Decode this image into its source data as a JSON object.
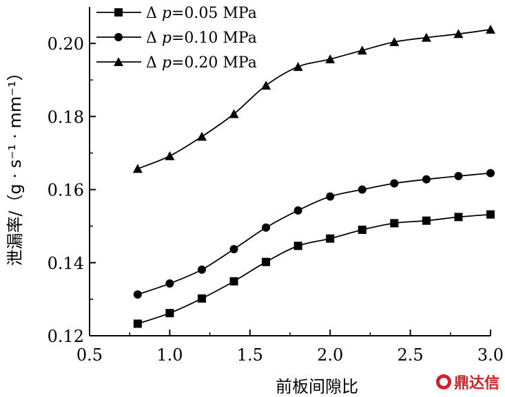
{
  "chart_data": {
    "type": "line",
    "xlabel": "前板间隙比",
    "ylabel": "泄漏率/（g · s⁻¹ · mm⁻¹）",
    "xlim": [
      0.5,
      3.0
    ],
    "ylim": [
      0.12,
      0.21
    ],
    "xticks": [
      "0.5",
      "1.0",
      "1.5",
      "2.0",
      "2.5",
      "3.0"
    ],
    "yticks": [
      "0.12",
      "0.14",
      "0.16",
      "0.18",
      "0.20"
    ],
    "grid": false,
    "legend_position": "top-left",
    "x": [
      0.8,
      1.0,
      1.2,
      1.4,
      1.6,
      1.8,
      2.0,
      2.2,
      2.4,
      2.6,
      2.8,
      3.0
    ],
    "series": [
      {
        "name": "Δp=0.05 MPa",
        "legend_symbol": "Δ",
        "legend_var": "p",
        "legend_rest": "=0.05 MPa",
        "marker": "square",
        "values": [
          0.1233,
          0.1262,
          0.1302,
          0.1349,
          0.1402,
          0.1446,
          0.1466,
          0.149,
          0.1508,
          0.1515,
          0.1525,
          0.1532
        ]
      },
      {
        "name": "Δp=0.10 MPa",
        "legend_symbol": "Δ",
        "legend_var": "p",
        "legend_rest": "=0.10 MPa",
        "marker": "circle",
        "values": [
          0.1313,
          0.1343,
          0.1381,
          0.1437,
          0.1496,
          0.1543,
          0.1581,
          0.16,
          0.1617,
          0.1628,
          0.1637,
          0.1645
        ]
      },
      {
        "name": "Δp=0.20 MPa",
        "legend_symbol": "Δ",
        "legend_var": "p",
        "legend_rest": "=0.20 MPa",
        "marker": "triangle",
        "values": [
          0.1657,
          0.1692,
          0.1745,
          0.1807,
          0.1885,
          0.1936,
          0.1957,
          0.1981,
          0.2004,
          0.2016,
          0.2026,
          0.2038
        ]
      }
    ]
  },
  "watermark": {
    "text": "鼎达信"
  }
}
